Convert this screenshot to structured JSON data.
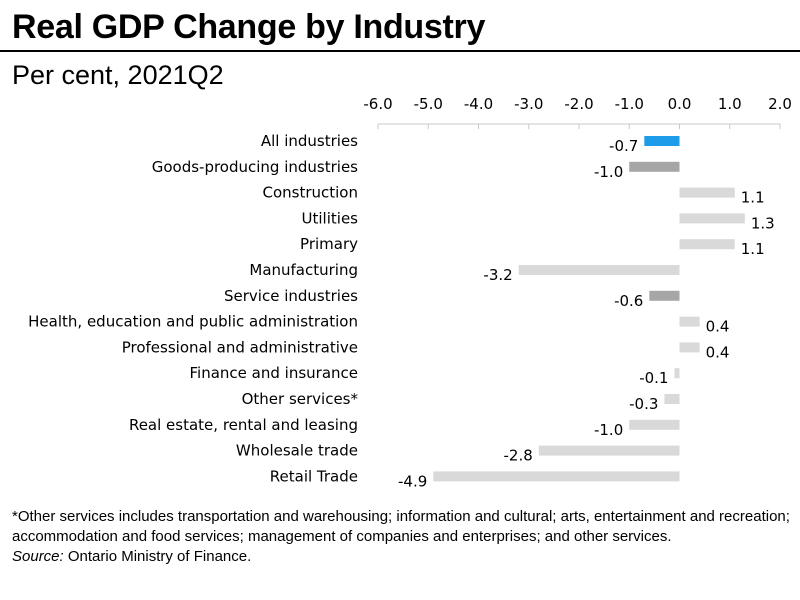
{
  "header": {
    "title": "Real GDP Change by Industry",
    "subtitle": "Per cent, 2021Q2"
  },
  "notes": {
    "footnote": "*Other services includes transportation and warehousing; information and cultural; arts, entertainment and recreation; accommodation and food services; management of companies and enterprises; and other services.",
    "source_label": "Source:",
    "source_text": " Ontario Ministry of Finance."
  },
  "colors": {
    "total": "#1e9be9",
    "group": "#a6a6a6",
    "industry": "#d9d9d9",
    "axis": "#c8c8c8"
  },
  "chart_data": {
    "type": "bar",
    "orientation": "horizontal",
    "title": "Real GDP Change by Industry",
    "subtitle": "Per cent, 2021Q2",
    "xlim": [
      -6.0,
      2.0
    ],
    "xticks": [
      -6.0,
      -5.0,
      -4.0,
      -3.0,
      -2.0,
      -1.0,
      0.0,
      1.0,
      2.0
    ],
    "axis_position": "top",
    "grid": false,
    "categories": [
      "All industries",
      "Goods-producing industries",
      "Construction",
      "Utilities",
      "Primary",
      "Manufacturing",
      "Service industries",
      "Health, education and public administration",
      "Professional and administrative",
      "Finance and insurance",
      "Other services*",
      "Real estate, rental and leasing",
      "Wholesale trade",
      "Retail Trade"
    ],
    "values": [
      -0.7,
      -1.0,
      1.1,
      1.3,
      1.1,
      -3.2,
      -0.6,
      0.4,
      0.4,
      -0.1,
      -0.3,
      -1.0,
      -2.8,
      -4.9
    ],
    "groups": [
      "total",
      "group",
      "industry",
      "industry",
      "industry",
      "industry",
      "group",
      "industry",
      "industry",
      "industry",
      "industry",
      "industry",
      "industry",
      "industry"
    ]
  }
}
